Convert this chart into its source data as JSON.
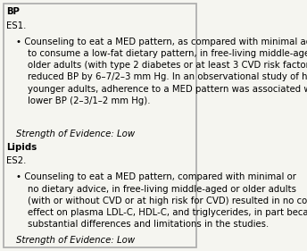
{
  "title": "BP",
  "bg_color": "#f5f5f0",
  "border_color": "#aaaaaa",
  "sections": [
    {
      "header": "BP",
      "bold": true,
      "italic": false,
      "indent": 0,
      "fontsize": 7.5
    },
    {
      "header": "ES1.",
      "bold": false,
      "italic": false,
      "indent": 0,
      "fontsize": 7.5
    },
    {
      "bullet": "• Counseling to eat a MED pattern, as compared with minimal advice\n    to consume a low-fat dietary pattern, in free-living middle-aged or\n    older adults (with type 2 diabetes or at least 3 CVD risk factors)\n    reduced BP by 6–7/2–3 mm Hg. In an observational study of healthy\n    younger adults, adherence to a MED pattern was associated with\n    lower BP (2–3/1–2 mm Hg).",
      "bold": false,
      "italic": false,
      "indent": 1,
      "fontsize": 7.5
    },
    {
      "header": "Strength of Evidence: Low",
      "bold": false,
      "italic": true,
      "indent": 1,
      "fontsize": 7.5
    },
    {
      "header": "Lipids",
      "bold": true,
      "italic": false,
      "indent": 0,
      "fontsize": 7.5
    },
    {
      "header": "ES2.",
      "bold": false,
      "italic": false,
      "indent": 0,
      "fontsize": 7.5
    },
    {
      "bullet": "• Counseling to eat a MED pattern, compared with minimal or\n    no dietary advice, in free-living middle-aged or older adults\n    (with or without CVD or at high risk for CVD) resulted in no consistent\n    effect on plasma LDL-C, HDL-C, and triglycerides, in part because of\n    substantial differences and limitations in the studies.",
      "bold": false,
      "italic": false,
      "indent": 1,
      "fontsize": 7.5
    },
    {
      "header": "Strength of Evidence: Low",
      "bold": false,
      "italic": true,
      "indent": 1,
      "fontsize": 7.5
    }
  ]
}
